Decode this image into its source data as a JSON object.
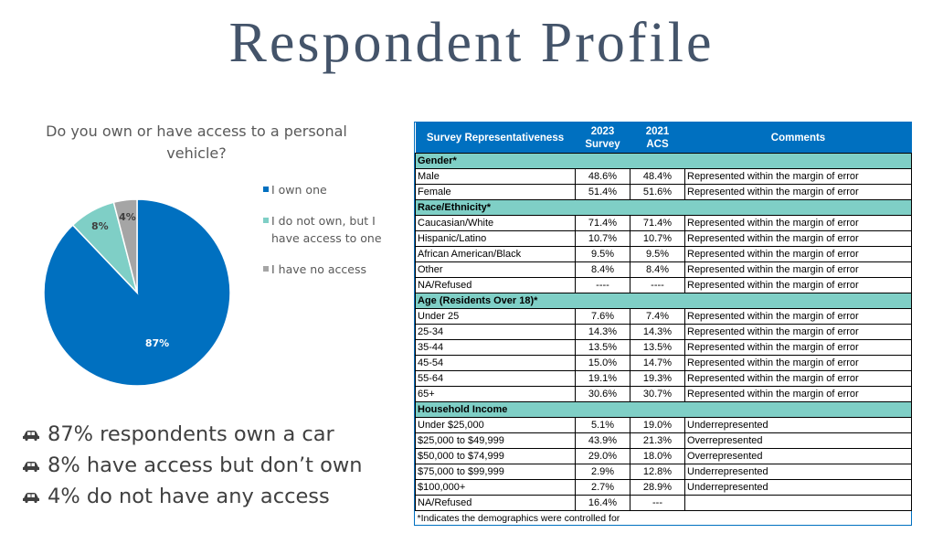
{
  "title": "Respondent Profile",
  "pie": {
    "question": "Do you own or have access to a personal vehicle?",
    "colors": {
      "own": "#0070c0",
      "access": "#7fcfc6",
      "none": "#a5a5a5"
    }
  },
  "chart_data": {
    "type": "pie",
    "title": "Do you own or have access to a personal vehicle?",
    "slices": [
      {
        "label": "I own one",
        "value": 87,
        "display": "87%",
        "color": "#0070c0"
      },
      {
        "label": "I do not own, but I have access to one",
        "value": 8,
        "display": "8%",
        "color": "#7fcfc6"
      },
      {
        "label": "I have no access",
        "value": 4,
        "display": "4%",
        "color": "#a5a5a5"
      }
    ],
    "legend_position": "right"
  },
  "bullets": [
    {
      "icon": "car-icon",
      "text": "87% respondents own a car"
    },
    {
      "icon": "car-icon",
      "text": "8% have access but don’t own"
    },
    {
      "icon": "car-icon",
      "text": "4% do not have any access"
    }
  ],
  "table": {
    "headers": {
      "label": "Survey Representativeness",
      "survey_line1": "2023",
      "survey_line2": "Survey",
      "acs_line1": "2021",
      "acs_line2": "ACS",
      "comments": "Comments"
    },
    "sections": [
      {
        "title": "Gender*",
        "rows": [
          [
            "Male",
            "48.6%",
            "48.4%",
            "Represented within the margin of error"
          ],
          [
            "Female",
            "51.4%",
            "51.6%",
            "Represented within the margin of error"
          ]
        ]
      },
      {
        "title": "Race/Ethnicity*",
        "rows": [
          [
            "Caucasian/White",
            "71.4%",
            "71.4%",
            "Represented within the margin of error"
          ],
          [
            "Hispanic/Latino",
            "10.7%",
            "10.7%",
            "Represented within the margin of error"
          ],
          [
            "African American/Black",
            "9.5%",
            "9.5%",
            "Represented within the margin of error"
          ],
          [
            "Other",
            "8.4%",
            "8.4%",
            "Represented within the margin of error"
          ],
          [
            "NA/Refused",
            "----",
            "----",
            "Represented within the margin of error"
          ]
        ]
      },
      {
        "title": "Age (Residents Over 18)*",
        "rows": [
          [
            "Under 25",
            "7.6%",
            "7.4%",
            "Represented within the margin of error"
          ],
          [
            "25-34",
            "14.3%",
            "14.3%",
            "Represented within the margin of error"
          ],
          [
            "35-44",
            "13.5%",
            "13.5%",
            "Represented within the margin of error"
          ],
          [
            "45-54",
            "15.0%",
            "14.7%",
            "Represented within the margin of error"
          ],
          [
            "55-64",
            "19.1%",
            "19.3%",
            "Represented within the margin of error"
          ],
          [
            "65+",
            "30.6%",
            "30.7%",
            "Represented within the margin of error"
          ]
        ]
      },
      {
        "title": "Household Income",
        "rows": [
          [
            "Under $25,000",
            "5.1%",
            "19.0%",
            "Underrepresented"
          ],
          [
            "$25,000 to $49,999",
            "43.9%",
            "21.3%",
            "Overrepresented"
          ],
          [
            "$50,000 to $74,999",
            "29.0%",
            "18.0%",
            "Overrepresented"
          ],
          [
            "$75,000 to $99,999",
            "2.9%",
            "12.8%",
            "Underrepresented"
          ],
          [
            "$100,000+",
            "2.7%",
            "28.9%",
            "Underrepresented"
          ],
          [
            "NA/Refused",
            "16.4%",
            "---",
            ""
          ]
        ]
      }
    ],
    "footnote": "*Indicates the demographics were controlled for"
  }
}
